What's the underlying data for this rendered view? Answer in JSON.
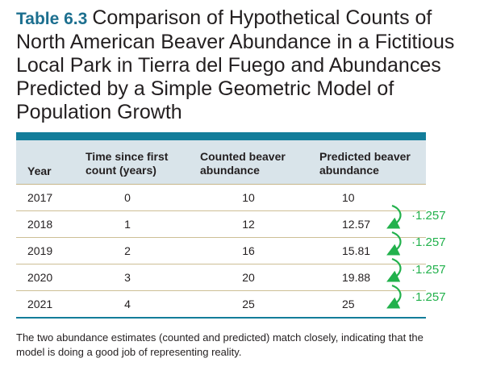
{
  "table": {
    "label": "Table 6.3",
    "title": "Comparison of Hypothetical Counts of North American Beaver Abundance in a Fictitious Local Park in Tierra del Fuego and Abundances Predicted by a Simple Geometric Model of Population Growth",
    "headers": {
      "year": "Year",
      "time": "Time since first count (years)",
      "counted": "Counted beaver abundance",
      "predicted": "Predicted beaver abundance"
    },
    "rows": [
      {
        "year": "2017",
        "time": "0",
        "counted": "10",
        "predicted": "10"
      },
      {
        "year": "2018",
        "time": "1",
        "counted": "12",
        "predicted": "12.57"
      },
      {
        "year": "2019",
        "time": "2",
        "counted": "16",
        "predicted": "15.81"
      },
      {
        "year": "2020",
        "time": "3",
        "counted": "20",
        "predicted": "19.88"
      },
      {
        "year": "2021",
        "time": "4",
        "counted": "25",
        "predicted": "25"
      }
    ],
    "multipliers": [
      "·1.257",
      "·1.257",
      "·1.257",
      "·1.257"
    ],
    "caption": "The two abundance estimates (counted and predicted) match closely, indicating that the model is doing a good job of representing reality."
  },
  "colors": {
    "accent": "#137d9a",
    "header_bg": "#d9e4ea",
    "rule": "#cdbf95",
    "annotation": "#22b14c"
  }
}
